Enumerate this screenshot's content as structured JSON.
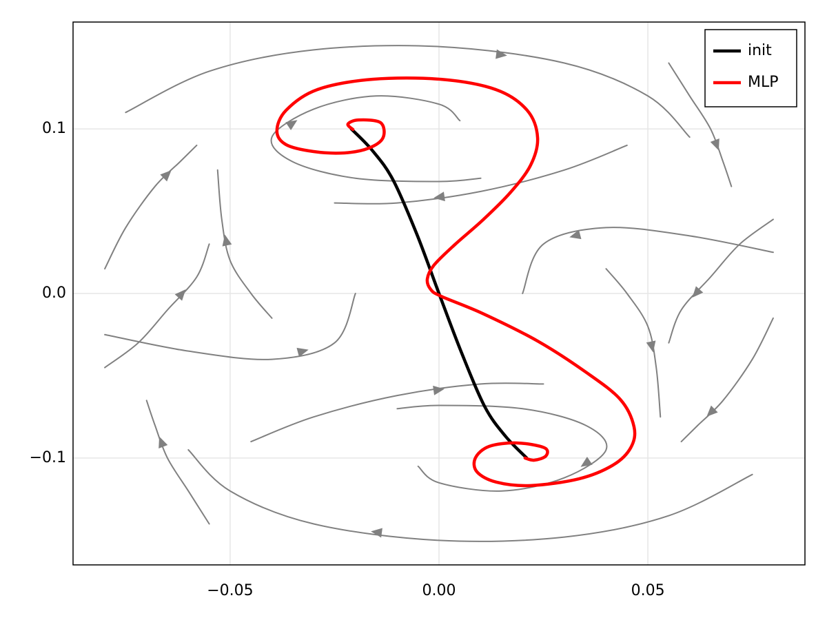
{
  "chart_data": {
    "type": "streamplot",
    "xlim": [
      -0.0876,
      0.0876
    ],
    "ylim": [
      -0.1649,
      0.1649
    ],
    "xticks": [
      {
        "value": -0.05,
        "label": "−0.05"
      },
      {
        "value": 0,
        "label": "0.00"
      },
      {
        "value": 0.05,
        "label": "0.05"
      }
    ],
    "yticks": [
      {
        "value": -0.1,
        "label": "−0.1"
      },
      {
        "value": 0,
        "label": "0.0"
      },
      {
        "value": 0.1,
        "label": "0.1"
      }
    ],
    "grid": true,
    "legend": "top-right",
    "stream_color": "#808080",
    "streamlines": [
      {
        "x": [
          -0.075,
          -0.055,
          -0.03,
          0,
          0.03,
          0.05,
          0.06
        ],
        "y": [
          0.11,
          0.135,
          0.148,
          0.15,
          0.14,
          0.12,
          0.095
        ]
      },
      {
        "x": [
          0.075,
          0.055,
          0.03,
          0,
          -0.03,
          -0.05,
          -0.06
        ],
        "y": [
          -0.11,
          -0.135,
          -0.148,
          -0.15,
          -0.14,
          -0.12,
          -0.095
        ]
      },
      {
        "x": [
          0.01,
          0.0,
          -0.02,
          -0.035,
          -0.04,
          -0.03,
          -0.015,
          0,
          0.005
        ],
        "y": [
          0.07,
          0.068,
          0.07,
          0.08,
          0.095,
          0.112,
          0.12,
          0.115,
          0.105
        ]
      },
      {
        "x": [
          -0.01,
          0.0,
          0.02,
          0.035,
          0.04,
          0.03,
          0.015,
          0,
          -0.005
        ],
        "y": [
          -0.07,
          -0.068,
          -0.07,
          -0.08,
          -0.095,
          -0.112,
          -0.12,
          -0.115,
          -0.105
        ]
      },
      {
        "x": [
          0.045,
          0.03,
          0.01,
          -0.01,
          -0.025
        ],
        "y": [
          0.09,
          0.075,
          0.062,
          0.055,
          0.055
        ]
      },
      {
        "x": [
          -0.045,
          -0.03,
          -0.01,
          0.01,
          0.025
        ],
        "y": [
          -0.09,
          -0.075,
          -0.062,
          -0.055,
          -0.055
        ]
      },
      {
        "x": [
          -0.08,
          -0.075,
          -0.068,
          -0.062,
          -0.058
        ],
        "y": [
          0.015,
          0.04,
          0.065,
          0.08,
          0.09
        ]
      },
      {
        "x": [
          0.08,
          0.075,
          0.068,
          0.062,
          0.058
        ],
        "y": [
          -0.015,
          -0.04,
          -0.065,
          -0.08,
          -0.09
        ]
      },
      {
        "x": [
          -0.08,
          -0.072,
          -0.065,
          -0.058,
          -0.055
        ],
        "y": [
          -0.045,
          -0.03,
          -0.01,
          0.01,
          0.03
        ]
      },
      {
        "x": [
          0.08,
          0.072,
          0.065,
          0.058,
          0.055
        ],
        "y": [
          0.045,
          0.03,
          0.01,
          -0.01,
          -0.03
        ]
      },
      {
        "x": [
          -0.04,
          -0.045,
          -0.05,
          -0.052,
          -0.053
        ],
        "y": [
          -0.015,
          0.0,
          0.02,
          0.045,
          0.075
        ]
      },
      {
        "x": [
          0.04,
          0.045,
          0.05,
          0.052,
          0.053
        ],
        "y": [
          0.015,
          0.0,
          -0.02,
          -0.045,
          -0.075
        ]
      },
      {
        "x": [
          0.055,
          0.06,
          0.065,
          0.068,
          0.07
        ],
        "y": [
          0.14,
          0.12,
          0.1,
          0.08,
          0.065
        ]
      },
      {
        "x": [
          -0.055,
          -0.06,
          -0.065,
          -0.068,
          -0.07
        ],
        "y": [
          -0.14,
          -0.12,
          -0.1,
          -0.08,
          -0.065
        ]
      },
      {
        "x": [
          0.08,
          0.06,
          0.04,
          0.025,
          0.02
        ],
        "y": [
          0.025,
          0.035,
          0.04,
          0.03,
          0.0
        ]
      },
      {
        "x": [
          -0.08,
          -0.06,
          -0.04,
          -0.025,
          -0.02
        ],
        "y": [
          -0.025,
          -0.035,
          -0.04,
          -0.03,
          0.0
        ]
      }
    ],
    "series": [
      {
        "name": "init",
        "color": "#000000",
        "x": [
          -0.021,
          -0.016,
          -0.011,
          -0.0053,
          0,
          0.0054,
          0.011,
          0.016,
          0.021
        ],
        "y": [
          0.1,
          0.087,
          0.069,
          0.036,
          0,
          -0.036,
          -0.069,
          -0.087,
          -0.1
        ]
      },
      {
        "name": "MLP",
        "color": "#ff0000",
        "x": [
          -0.0206,
          -0.0218,
          -0.0193,
          -0.014,
          -0.0134,
          -0.0168,
          -0.0226,
          -0.03,
          -0.0366,
          -0.0388,
          -0.0366,
          -0.0292,
          -0.016,
          0.0005,
          0.0137,
          0.0211,
          0.0236,
          0.0219,
          0.017,
          0.0104,
          0.0038,
          -0.0012,
          -0.0028,
          -0.002,
          0.0005,
          0.0104,
          0.0236,
          0.0351,
          0.0434,
          0.0467,
          0.0459,
          0.0417,
          0.0335,
          0.0219,
          0.0137,
          0.0091,
          0.0087,
          0.012,
          0.0186,
          0.0252,
          0.0256,
          0.0228,
          0.0206
        ],
        "y": [
          0.0996,
          0.1029,
          0.1054,
          0.1038,
          0.0946,
          0.0883,
          0.0854,
          0.0862,
          0.0904,
          0.0987,
          0.1113,
          0.1238,
          0.1301,
          0.1301,
          0.1238,
          0.1113,
          0.0946,
          0.0778,
          0.0611,
          0.0444,
          0.0297,
          0.0172,
          0.0088,
          0.0025,
          -0.0017,
          -0.0121,
          -0.0289,
          -0.0477,
          -0.0644,
          -0.0812,
          -0.0937,
          -0.1042,
          -0.1126,
          -0.1167,
          -0.1146,
          -0.1084,
          -0.1,
          -0.0929,
          -0.0908,
          -0.0937,
          -0.0987,
          -0.1013,
          -0.1
        ]
      }
    ]
  }
}
